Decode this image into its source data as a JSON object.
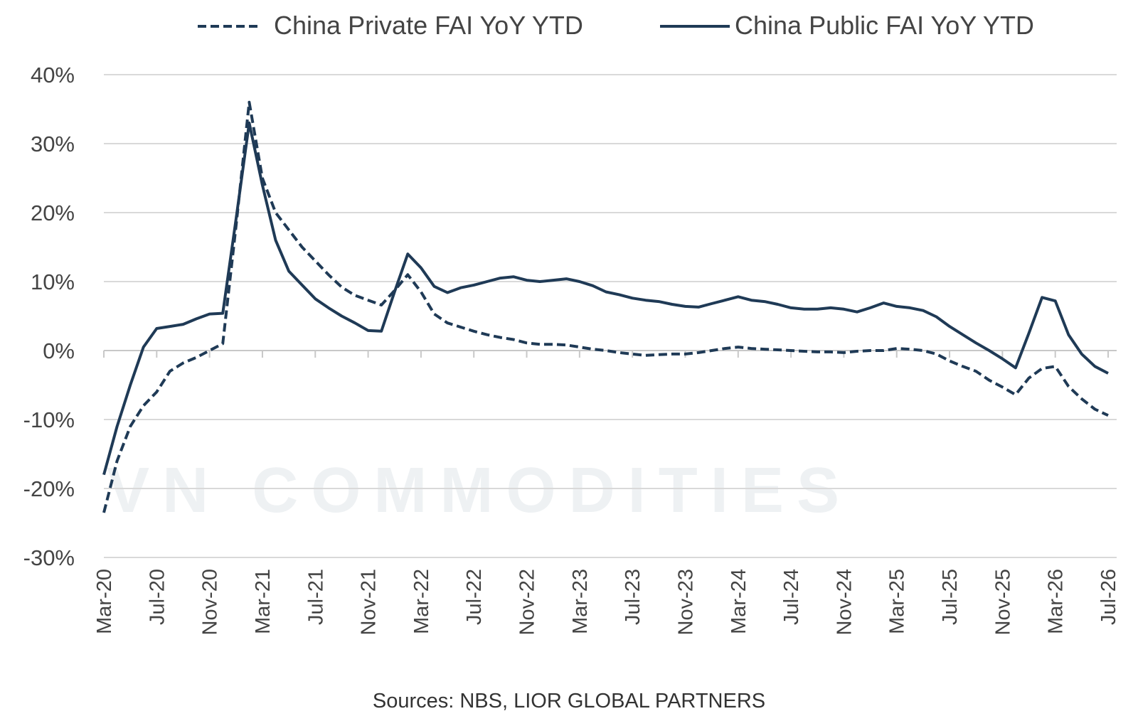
{
  "chart_data": {
    "type": "line",
    "source": "Sources: NBS, LIOR GLOBAL PARTNERS",
    "watermark": "VN COMMODITIES",
    "categories": [
      "Mar-20",
      null,
      null,
      null,
      "Jul-20",
      null,
      null,
      null,
      "Nov-20",
      null,
      null,
      null,
      "Mar-21",
      null,
      null,
      null,
      "Jul-21",
      null,
      null,
      null,
      "Nov-21",
      null,
      null,
      null,
      "Mar-22",
      null,
      null,
      null,
      "Jul-22",
      null,
      null,
      null,
      "Nov-22",
      null,
      null,
      null,
      "Mar-23",
      null,
      null,
      null,
      "Jul-23",
      null,
      null,
      null,
      "Nov-23",
      null,
      null,
      null,
      "Mar-24",
      null,
      null,
      null,
      "Jul-24",
      null,
      null,
      null,
      "Nov-24",
      null,
      null,
      null,
      "Mar-25",
      null,
      null,
      null,
      "Jul-25",
      null,
      null,
      null,
      "Nov-25",
      null,
      null,
      null,
      "Mar-26",
      null,
      null,
      null,
      "Jul-26"
    ],
    "series": [
      {
        "name": "China Private FAI YoY YTD",
        "color": "#1f3a56",
        "dash": true,
        "values": [
          -23.5,
          -16,
          -11,
          -8,
          -6,
          -3,
          -1.8,
          -1,
          0,
          1,
          18,
          36,
          25,
          20,
          17.5,
          15,
          13,
          11,
          9.2,
          8,
          7.3,
          6.6,
          8.7,
          11,
          8.5,
          5.3,
          4,
          3.4,
          2.8,
          2.3,
          1.9,
          1.6,
          1.1,
          0.9,
          0.9,
          0.8,
          0.5,
          0.2,
          0,
          -0.3,
          -0.5,
          -0.7,
          -0.6,
          -0.5,
          -0.5,
          -0.3,
          0,
          0.3,
          0.5,
          0.3,
          0.2,
          0.1,
          0,
          -0.1,
          -0.2,
          -0.2,
          -0.3,
          -0.1,
          0,
          0,
          0.3,
          0.2,
          0,
          -0.5,
          -1.5,
          -2.3,
          -3,
          -4.3,
          -5.3,
          -6.4,
          -4,
          -2.6,
          -2.3,
          -5.2,
          -7,
          -8.5,
          -9.4
        ]
      },
      {
        "name": "China Public FAI YoY YTD",
        "color": "#1f3a56",
        "dash": false,
        "values": [
          -18,
          -11,
          -5,
          0.5,
          3.2,
          3.5,
          3.8,
          4.6,
          5.3,
          5.4,
          19,
          33,
          24,
          16,
          11.5,
          9.5,
          7.5,
          6.2,
          5,
          4,
          2.9,
          2.8,
          8.5,
          14,
          12,
          9.3,
          8.4,
          9.1,
          9.5,
          10,
          10.5,
          10.7,
          10.2,
          10,
          10.2,
          10.4,
          10,
          9.4,
          8.5,
          8.1,
          7.6,
          7.3,
          7.1,
          6.7,
          6.4,
          6.3,
          6.8,
          7.3,
          7.8,
          7.3,
          7.1,
          6.7,
          6.2,
          6,
          6,
          6.2,
          6,
          5.6,
          6.2,
          6.9,
          6.4,
          6.2,
          5.8,
          4.9,
          3.5,
          2.3,
          1.1,
          0,
          -1.2,
          -2.5,
          2.5,
          7.7,
          7.2,
          2.3,
          -0.5,
          -2.3,
          -3.3
        ]
      }
    ],
    "ylim": [
      -30,
      40
    ],
    "yticks": [
      {
        "value": -30,
        "label": "-30%"
      },
      {
        "value": -20,
        "label": "-20%"
      },
      {
        "value": -10,
        "label": "-10%"
      },
      {
        "value": 0,
        "label": "0%"
      },
      {
        "value": 10,
        "label": "10%"
      },
      {
        "value": 20,
        "label": "20%"
      },
      {
        "value": 30,
        "label": "30%"
      },
      {
        "value": 40,
        "label": "40%"
      }
    ],
    "grid": true
  }
}
